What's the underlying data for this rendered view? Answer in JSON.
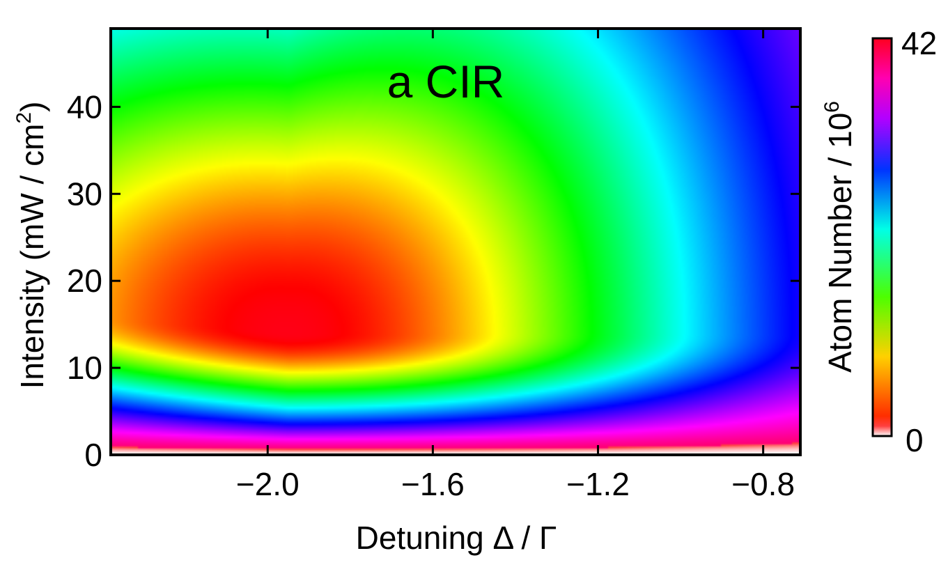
{
  "chart_data": {
    "type": "heatmap",
    "title": "a CIR",
    "xlabel": "Detuning Δ / Γ",
    "ylabel_main": "Intensity (mW / cm",
    "ylabel_sup": "2",
    "ylabel_tail": ")",
    "colorbar_label_main": "Atom Number / 10",
    "colorbar_label_sup": "6",
    "xlim": [
      -2.38,
      -0.71
    ],
    "ylim": [
      0,
      49
    ],
    "x_ticks": [
      -2.0,
      -1.6,
      -1.2,
      -0.8
    ],
    "x_tick_labels": [
      "−2.0",
      "−1.6",
      "−1.2",
      "−0.8"
    ],
    "y_ticks": [
      0,
      10,
      20,
      30,
      40
    ],
    "y_tick_labels": [
      "0",
      "10",
      "20",
      "30",
      "40"
    ],
    "colorbar_range": [
      0,
      42
    ],
    "colorbar_tick_labels": [
      "0",
      "42"
    ],
    "colormap": "hue (red→magenta→blue→cyan→green→yellow→orange), white at zero",
    "peak": {
      "x": -1.95,
      "y": 14,
      "value": 42
    },
    "contour_samples": [
      {
        "x": -2.38,
        "y": 0.5,
        "value": 0
      },
      {
        "x": -1.95,
        "y": 14,
        "value": 42
      },
      {
        "x": -1.2,
        "y": 13,
        "value": 30
      },
      {
        "x": -2.3,
        "y": 35,
        "value": 30
      },
      {
        "x": -0.95,
        "y": 20,
        "value": 20
      },
      {
        "x": -0.73,
        "y": 45,
        "value": 4
      }
    ]
  }
}
